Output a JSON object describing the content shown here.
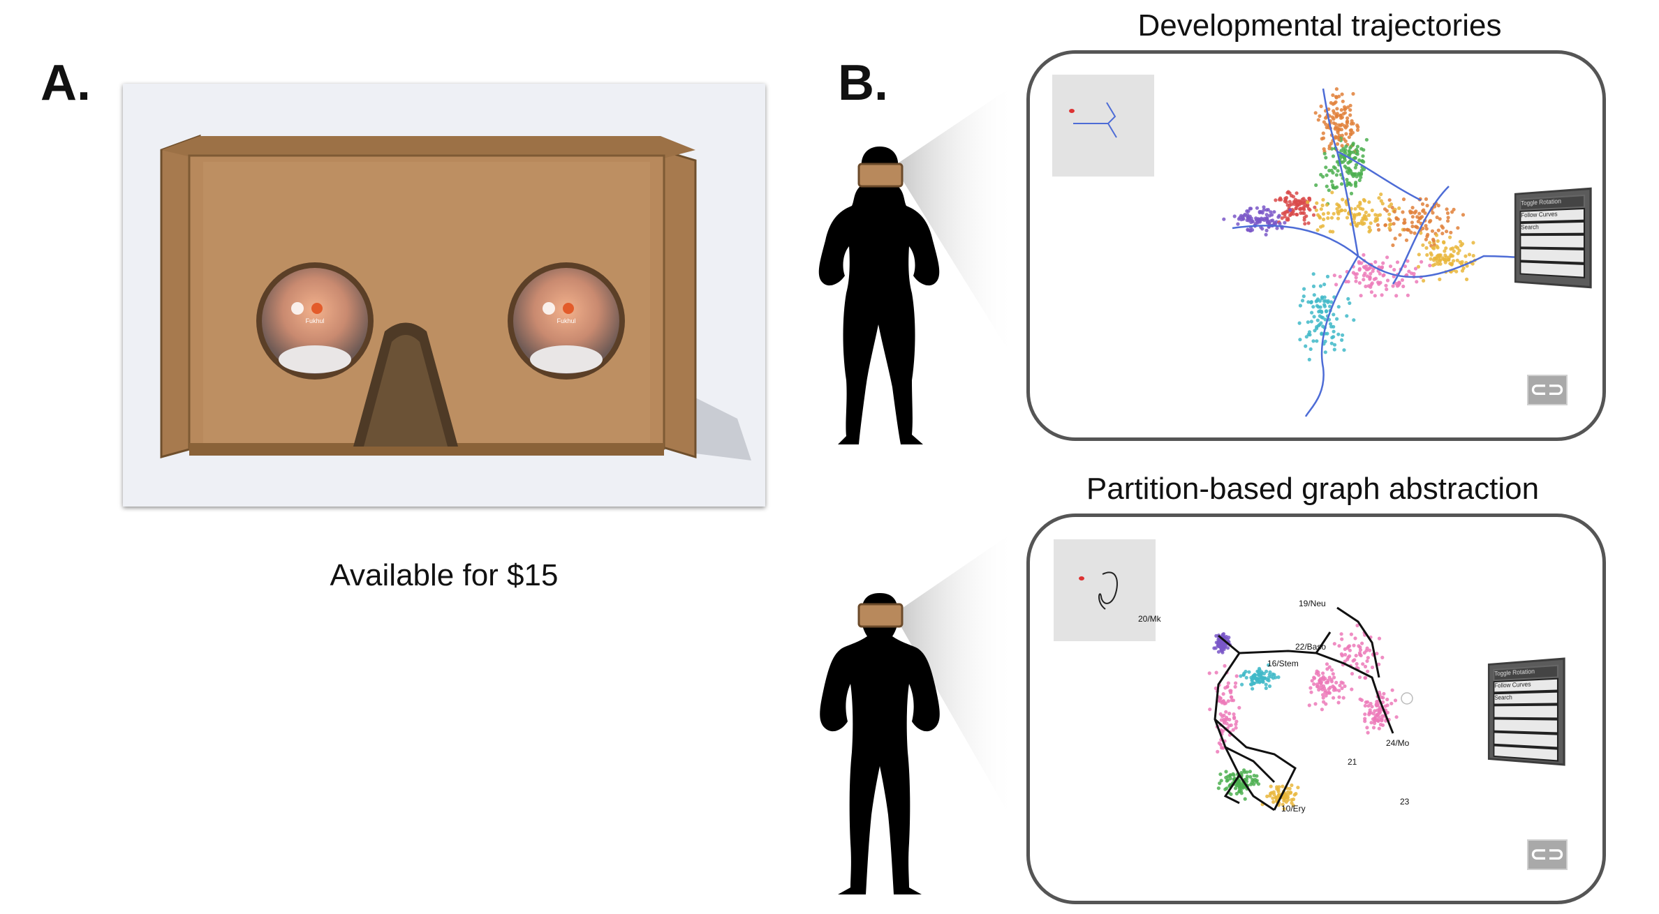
{
  "panel_a": {
    "label": "A.",
    "caption": "Available for $15",
    "lens_text_left": "Fukhul",
    "lens_text_right": "Fukhul"
  },
  "panel_b": {
    "label": "B.",
    "top": {
      "title": "Developmental trajectories",
      "menu": {
        "header": "Toggle Rotation",
        "follow": "Follow Curves",
        "search": "Search"
      }
    },
    "bottom": {
      "title": "Partition-based graph abstraction",
      "menu": {
        "header": "Toggle Rotation",
        "follow": "Follow Curves",
        "search": "Search"
      },
      "node_labels": [
        "19/Neu",
        "20/Mk",
        "22/Baso",
        "16/Stem",
        "24/Mo",
        "21",
        "23",
        "10/Ery"
      ]
    },
    "cardboard_icon_text": "⊂⊃"
  },
  "colors": {
    "cardboard": "#b8895c",
    "cardboard_dark": "#8a6238",
    "trajectory_line": "#4d6cd6",
    "dot_palette": [
      "#e0803a",
      "#3fb8c8",
      "#e9b63b",
      "#7a57c8",
      "#d94a4a",
      "#4caf50",
      "#ec79b8",
      "#8c6d3f"
    ]
  }
}
